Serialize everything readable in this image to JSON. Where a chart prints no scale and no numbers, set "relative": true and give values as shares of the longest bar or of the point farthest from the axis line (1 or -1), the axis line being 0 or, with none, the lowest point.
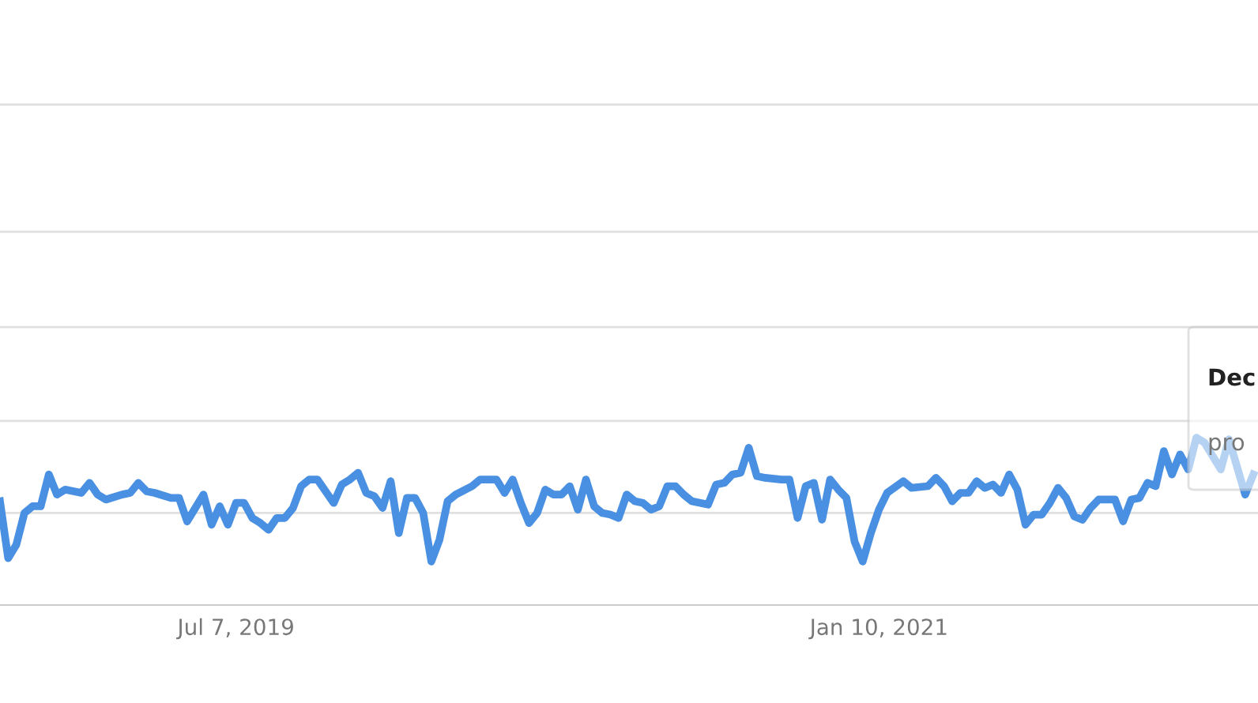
{
  "chart_data": {
    "type": "line",
    "relative": true,
    "ref_lines": [
      {
        "axis": "y",
        "value": 0.55,
        "color": "#e0e0e0"
      },
      {
        "axis": "y",
        "value": 1.1,
        "color": "#e0e0e0"
      },
      {
        "axis": "y",
        "value": 1.66,
        "color": "#e0e0e0"
      },
      {
        "axis": "y",
        "value": 2.23,
        "color": "#e0e0e0"
      },
      {
        "axis": "y",
        "value": 2.99,
        "color": "#e0e0e0"
      }
    ],
    "annotations": [
      "Dec",
      "pro"
    ],
    "xlim": [
      "2018-12-16",
      "2021-12-02"
    ],
    "xticks": [
      {
        "value": "2019-07-07",
        "label": "Jul 7, 2019"
      },
      {
        "value": "2021-01-10",
        "label": "Jan 10, 2021"
      }
    ],
    "x": [
      "2018-12-16",
      "2018-12-23",
      "2018-12-30",
      "2019-01-06",
      "2019-01-13",
      "2019-01-20",
      "2019-01-27",
      "2019-02-03",
      "2019-02-10",
      "2019-02-24",
      "2019-03-03",
      "2019-03-10",
      "2019-03-17",
      "2019-03-31",
      "2019-04-07",
      "2019-04-14",
      "2019-04-21",
      "2019-04-28",
      "2019-05-12",
      "2019-05-19",
      "2019-05-26",
      "2019-06-09",
      "2019-06-16",
      "2019-06-23",
      "2019-06-30",
      "2019-07-07",
      "2019-07-14",
      "2019-07-21",
      "2019-07-28",
      "2019-08-04",
      "2019-08-11",
      "2019-08-18",
      "2019-08-25",
      "2019-09-01",
      "2019-09-08",
      "2019-09-15",
      "2019-09-29",
      "2019-10-06",
      "2019-10-13",
      "2019-10-20",
      "2019-10-27",
      "2019-11-03",
      "2019-11-10",
      "2019-11-17",
      "2019-11-24",
      "2019-12-01",
      "2019-12-08",
      "2019-12-15",
      "2019-12-22",
      "2019-12-29",
      "2020-01-05",
      "2020-01-12",
      "2020-01-26",
      "2020-02-02",
      "2020-02-16",
      "2020-02-23",
      "2020-03-01",
      "2020-03-08",
      "2020-03-15",
      "2020-03-22",
      "2020-03-29",
      "2020-04-05",
      "2020-04-12",
      "2020-04-19",
      "2020-04-26",
      "2020-05-03",
      "2020-05-10",
      "2020-05-17",
      "2020-05-24",
      "2020-05-31",
      "2020-06-07",
      "2020-06-14",
      "2020-06-21",
      "2020-06-28",
      "2020-07-05",
      "2020-07-12",
      "2020-07-19",
      "2020-07-26",
      "2020-08-02",
      "2020-08-16",
      "2020-08-23",
      "2020-08-30",
      "2020-09-06",
      "2020-09-13",
      "2020-09-20",
      "2020-09-27",
      "2020-10-04",
      "2020-10-18",
      "2020-10-25",
      "2020-11-01",
      "2020-11-08",
      "2020-11-15",
      "2020-11-22",
      "2020-11-29",
      "2020-12-06",
      "2020-12-13",
      "2020-12-20",
      "2020-12-27",
      "2021-01-03",
      "2021-01-10",
      "2021-01-17",
      "2021-01-31",
      "2021-02-07",
      "2021-02-21",
      "2021-02-28",
      "2021-03-07",
      "2021-03-14",
      "2021-03-21",
      "2021-03-28",
      "2021-04-04",
      "2021-04-11",
      "2021-04-18",
      "2021-04-25",
      "2021-05-02",
      "2021-05-09",
      "2021-05-16",
      "2021-05-23",
      "2021-05-30",
      "2021-06-06",
      "2021-06-13",
      "2021-06-20",
      "2021-06-27",
      "2021-07-04",
      "2021-07-11",
      "2021-07-18",
      "2021-07-25",
      "2021-08-01",
      "2021-08-08",
      "2021-08-15",
      "2021-08-22",
      "2021-08-29",
      "2021-09-05",
      "2021-09-12",
      "2021-09-19",
      "2021-09-26",
      "2021-10-03",
      "2021-10-10",
      "2021-10-17",
      "2021-10-31",
      "2021-11-07",
      "2021-11-21",
      "2021-11-28"
    ],
    "series": [
      {
        "color": "#4a90e2",
        "values": [
          0.62,
          0.28,
          0.36,
          0.55,
          0.59,
          0.59,
          0.78,
          0.66,
          0.69,
          0.67,
          0.73,
          0.66,
          0.63,
          0.66,
          0.67,
          0.73,
          0.68,
          0.67,
          0.64,
          0.64,
          0.5,
          0.66,
          0.48,
          0.59,
          0.48,
          0.61,
          0.61,
          0.52,
          0.49,
          0.45,
          0.52,
          0.52,
          0.58,
          0.71,
          0.75,
          0.75,
          0.61,
          0.72,
          0.75,
          0.79,
          0.67,
          0.65,
          0.58,
          0.74,
          0.43,
          0.64,
          0.64,
          0.55,
          0.26,
          0.39,
          0.62,
          0.66,
          0.71,
          0.75,
          0.75,
          0.67,
          0.75,
          0.61,
          0.49,
          0.55,
          0.69,
          0.66,
          0.66,
          0.71,
          0.57,
          0.75,
          0.59,
          0.55,
          0.54,
          0.52,
          0.66,
          0.62,
          0.61,
          0.57,
          0.59,
          0.71,
          0.71,
          0.66,
          0.62,
          0.6,
          0.72,
          0.73,
          0.78,
          0.79,
          0.94,
          0.77,
          0.76,
          0.75,
          0.75,
          0.52,
          0.71,
          0.73,
          0.51,
          0.75,
          0.69,
          0.64,
          0.38,
          0.26,
          0.43,
          0.57,
          0.67,
          0.74,
          0.7,
          0.71,
          0.76,
          0.71,
          0.62,
          0.67,
          0.67,
          0.74,
          0.7,
          0.72,
          0.67,
          0.78,
          0.69,
          0.48,
          0.54,
          0.54,
          0.61,
          0.7,
          0.64,
          0.53,
          0.51,
          0.58,
          0.63,
          0.63,
          0.63,
          0.5,
          0.63,
          0.64,
          0.73,
          0.71,
          0.92,
          0.78,
          0.9,
          0.81,
          1.0,
          0.97,
          0.81,
          0.99,
          0.66,
          0.78
        ]
      }
    ]
  }
}
